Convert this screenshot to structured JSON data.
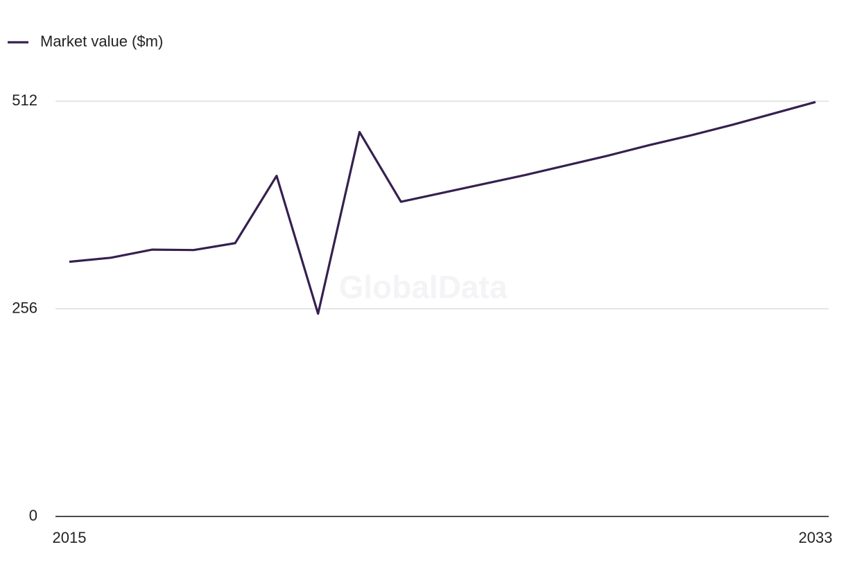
{
  "chart_data": {
    "type": "line",
    "watermark": "GlobalData",
    "x": [
      2015,
      2016,
      2017,
      2018,
      2019,
      2020,
      2021,
      2022,
      2023,
      2024,
      2025,
      2026,
      2027,
      2028,
      2029,
      2030,
      2031,
      2032,
      2033
    ],
    "series": [
      {
        "name": "Market value ($m)",
        "color": "#36204f",
        "values": [
          314,
          319,
          329,
          328.5,
          337,
          420,
          250,
          474,
          388,
          399,
          410,
          421,
          433,
          445,
          458,
          470,
          483,
          497,
          511
        ]
      }
    ],
    "xlim": [
      2015,
      2033
    ],
    "xticks": [
      2015,
      2033
    ],
    "ylim": [
      0,
      512
    ],
    "yticks": [
      0,
      256,
      512
    ],
    "grid": true,
    "legend": "top-left"
  }
}
